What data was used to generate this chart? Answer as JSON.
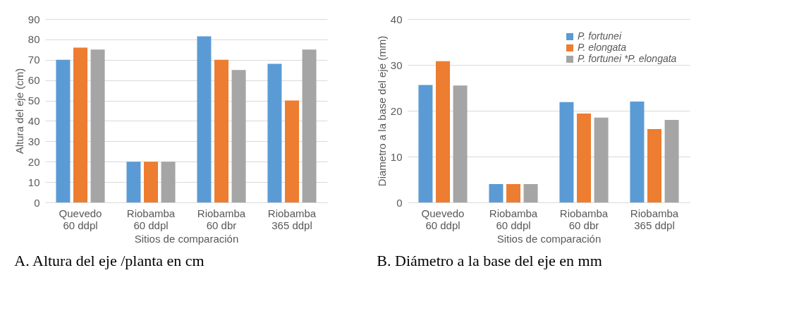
{
  "chart_data": [
    {
      "type": "bar",
      "xlabel": "Sitios de comparación",
      "ylabel": "Altura del eje (cm)",
      "categories": [
        "Quevedo 60 ddpl",
        "Riobamba 60 ddpl",
        "Riobamba 60 dbr",
        "Riobamba 365 ddpl"
      ],
      "series": [
        {
          "color": "#5b9bd5",
          "values": [
            70,
            20,
            81.5,
            68
          ]
        },
        {
          "color": "#ed7d31",
          "values": [
            76,
            20,
            70,
            50
          ]
        },
        {
          "color": "#a5a5a5",
          "values": [
            75,
            20,
            65,
            75
          ]
        }
      ],
      "ylim": [
        0,
        90
      ],
      "yticks": [
        0,
        10,
        20,
        30,
        40,
        50,
        60,
        70,
        80,
        90
      ],
      "grid": "y",
      "annotations": [
        "A.  Altura del eje /planta en cm"
      ]
    },
    {
      "type": "bar",
      "xlabel": "Sitios de comparación",
      "ylabel": "Diametro a la base del eje (mm)",
      "categories": [
        "Quevedo 60 ddpl",
        "Riobamba 60 ddpl",
        "Riobamba 60 dbr",
        "Riobamba 365 ddpl"
      ],
      "series": [
        {
          "name": "P. fortunei",
          "color": "#5b9bd5",
          "values": [
            25.6,
            4,
            21.9,
            22
          ]
        },
        {
          "name": "P. elongata",
          "color": "#ed7d31",
          "values": [
            30.8,
            4,
            19.4,
            16
          ]
        },
        {
          "name": "P. fortunei *P. elongata",
          "color": "#a5a5a5",
          "values": [
            25.5,
            4,
            18.5,
            18
          ]
        }
      ],
      "ylim": [
        0,
        40
      ],
      "yticks": [
        0,
        10,
        20,
        30,
        40
      ],
      "grid": "y",
      "legend": "top right",
      "annotations": [
        "B.  Diámetro a la base del eje en mm"
      ]
    }
  ]
}
